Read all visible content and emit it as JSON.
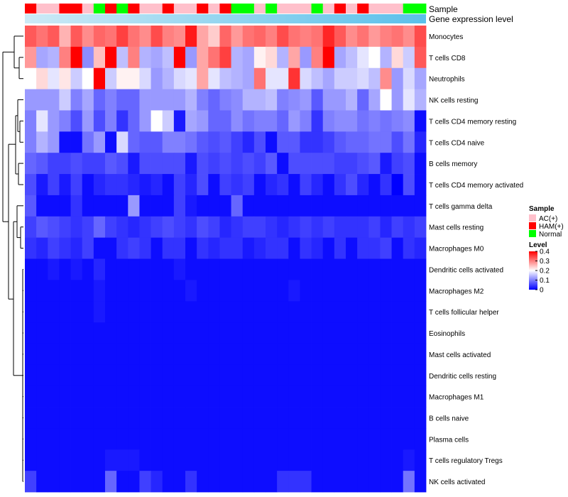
{
  "chart_data": {
    "type": "heatmap",
    "title": "",
    "annotation_labels": {
      "sample": "Sample",
      "gene": "Gene expression level"
    },
    "row_labels": [
      "Monocytes",
      "T cells CD8",
      "Neutrophils",
      "NK cells resting",
      "T cells CD4 memory resting",
      "T cells CD4 naive",
      "B cells memory",
      "T cells CD4 memory activated",
      "T cells gamma delta",
      "Mast cells resting",
      "Macrophages M0",
      "Dendritic cells activated",
      "Macrophages M2",
      "T cells follicular helper",
      "Eosinophils",
      "Mast cells activated",
      "Dendritic cells resting",
      "Macrophages M1",
      "B cells naive",
      "Plasma cells",
      "T cells regulatory  Tregs",
      "NK cells activated"
    ],
    "samples": [
      "HAM(+)",
      "AC(+)",
      "AC(+)",
      "HAM(+)",
      "HAM(+)",
      "AC(+)",
      "Normal",
      "HAM(+)",
      "Normal",
      "HAM(+)",
      "AC(+)",
      "AC(+)",
      "HAM(+)",
      "AC(+)",
      "AC(+)",
      "HAM(+)",
      "AC(+)",
      "HAM(+)",
      "Normal",
      "Normal",
      "AC(+)",
      "Normal",
      "AC(+)",
      "AC(+)",
      "AC(+)",
      "Normal",
      "AC(+)",
      "HAM(+)",
      "AC(+)",
      "HAM(+)",
      "AC(+)",
      "AC(+)",
      "AC(+)",
      "Normal",
      "Normal"
    ],
    "values": [
      [
        0.33,
        0.31,
        0.33,
        0.26,
        0.33,
        0.29,
        0.32,
        0.31,
        0.35,
        0.31,
        0.29,
        0.34,
        0.3,
        0.29,
        0.38,
        0.27,
        0.24,
        0.32,
        0.28,
        0.31,
        0.32,
        0.3,
        0.34,
        0.31,
        0.3,
        0.31,
        0.37,
        0.33,
        0.29,
        0.31,
        0.28,
        0.3,
        0.31,
        0.29,
        0.34
      ],
      [
        0.28,
        0.13,
        0.14,
        0.3,
        0.4,
        0.11,
        0.25,
        0.4,
        0.15,
        0.3,
        0.14,
        0.13,
        0.15,
        0.4,
        0.12,
        0.27,
        0.31,
        0.35,
        0.14,
        0.13,
        0.21,
        0.23,
        0.14,
        0.27,
        0.12,
        0.3,
        0.4,
        0.13,
        0.15,
        0.18,
        0.2,
        0.14,
        0.23,
        0.16,
        0.33
      ],
      [
        0.2,
        0.23,
        0.18,
        0.22,
        0.16,
        0.2,
        0.4,
        0.16,
        0.21,
        0.21,
        0.17,
        0.12,
        0.14,
        0.17,
        0.18,
        0.27,
        0.18,
        0.15,
        0.14,
        0.13,
        0.31,
        0.18,
        0.18,
        0.36,
        0.17,
        0.15,
        0.13,
        0.16,
        0.16,
        0.17,
        0.15,
        0.29,
        0.12,
        0.17,
        0.13
      ],
      [
        0.12,
        0.12,
        0.12,
        0.16,
        0.1,
        0.13,
        0.08,
        0.1,
        0.08,
        0.08,
        0.12,
        0.12,
        0.12,
        0.12,
        0.14,
        0.1,
        0.08,
        0.1,
        0.11,
        0.14,
        0.14,
        0.15,
        0.1,
        0.11,
        0.12,
        0.07,
        0.12,
        0.12,
        0.14,
        0.08,
        0.13,
        0.2,
        0.12,
        0.18,
        0.14
      ],
      [
        0.1,
        0.18,
        0.12,
        0.1,
        0.06,
        0.12,
        0.06,
        0.1,
        0.04,
        0.08,
        0.12,
        0.2,
        0.16,
        0.02,
        0.13,
        0.12,
        0.08,
        0.08,
        0.11,
        0.09,
        0.1,
        0.1,
        0.08,
        0.12,
        0.1,
        0.04,
        0.1,
        0.11,
        0.11,
        0.09,
        0.1,
        0.09,
        0.1,
        0.11,
        0.01
      ],
      [
        0.1,
        0.14,
        0.12,
        0.01,
        0.01,
        0.09,
        0.12,
        0.01,
        0.17,
        0.08,
        0.07,
        0.07,
        0.1,
        0.1,
        0.09,
        0.07,
        0.06,
        0.07,
        0.05,
        0.03,
        0.06,
        0.01,
        0.07,
        0.07,
        0.04,
        0.04,
        0.05,
        0.07,
        0.08,
        0.08,
        0.09,
        0.09,
        0.06,
        0.09,
        0.03
      ],
      [
        0.08,
        0.07,
        0.05,
        0.05,
        0.06,
        0.05,
        0.05,
        0.07,
        0.06,
        0.02,
        0.06,
        0.06,
        0.06,
        0.06,
        0.02,
        0.06,
        0.05,
        0.06,
        0.05,
        0.06,
        0.05,
        0.07,
        0.01,
        0.06,
        0.06,
        0.06,
        0.06,
        0.05,
        0.05,
        0.06,
        0.07,
        0.02,
        0.05,
        0.06,
        0.01
      ],
      [
        0.06,
        0.02,
        0.05,
        0.02,
        0.05,
        0.01,
        0.03,
        0.04,
        0.04,
        0.03,
        0.02,
        0.03,
        0.01,
        0.05,
        0.03,
        0.06,
        0.01,
        0.05,
        0.04,
        0.05,
        0.01,
        0.03,
        0.04,
        0.01,
        0.05,
        0.03,
        0.01,
        0.04,
        0.06,
        0.03,
        0.01,
        0.04,
        0.0,
        0.06,
        0.01
      ],
      [
        0.07,
        0.01,
        0.01,
        0.01,
        0.04,
        0.01,
        0.01,
        0.01,
        0.01,
        0.12,
        0.01,
        0.01,
        0.01,
        0.05,
        0.02,
        0.01,
        0.01,
        0.01,
        0.08,
        0.01,
        0.01,
        0.01,
        0.01,
        0.01,
        0.01,
        0.01,
        0.01,
        0.01,
        0.01,
        0.01,
        0.01,
        0.01,
        0.01,
        0.01,
        0.01
      ],
      [
        0.05,
        0.07,
        0.06,
        0.05,
        0.04,
        0.05,
        0.08,
        0.05,
        0.04,
        0.03,
        0.04,
        0.05,
        0.06,
        0.05,
        0.04,
        0.06,
        0.05,
        0.03,
        0.04,
        0.05,
        0.05,
        0.04,
        0.03,
        0.04,
        0.05,
        0.04,
        0.05,
        0.04,
        0.04,
        0.04,
        0.05,
        0.03,
        0.05,
        0.04,
        0.05
      ],
      [
        0.04,
        0.03,
        0.05,
        0.04,
        0.03,
        0.05,
        0.01,
        0.01,
        0.04,
        0.05,
        0.04,
        0.01,
        0.04,
        0.04,
        0.01,
        0.04,
        0.03,
        0.04,
        0.04,
        0.02,
        0.03,
        0.04,
        0.04,
        0.01,
        0.04,
        0.03,
        0.01,
        0.04,
        0.01,
        0.04,
        0.04,
        0.05,
        0.01,
        0.04,
        0.03
      ],
      [
        0.01,
        0.01,
        0.02,
        0.01,
        0.02,
        0.01,
        0.03,
        0.01,
        0.01,
        0.01,
        0.01,
        0.01,
        0.01,
        0.02,
        0.01,
        0.01,
        0.01,
        0.01,
        0.01,
        0.01,
        0.01,
        0.01,
        0.01,
        0.01,
        0.01,
        0.01,
        0.01,
        0.01,
        0.01,
        0.01,
        0.01,
        0.01,
        0.01,
        0.01,
        0.01
      ],
      [
        0.01,
        0.01,
        0.01,
        0.01,
        0.01,
        0.01,
        0.02,
        0.01,
        0.01,
        0.01,
        0.01,
        0.01,
        0.01,
        0.01,
        0.02,
        0.01,
        0.01,
        0.01,
        0.01,
        0.01,
        0.01,
        0.01,
        0.01,
        0.02,
        0.01,
        0.01,
        0.01,
        0.01,
        0.01,
        0.01,
        0.01,
        0.01,
        0.01,
        0.01,
        0.01
      ],
      [
        0.01,
        0.01,
        0.01,
        0.01,
        0.01,
        0.01,
        0.02,
        0.01,
        0.01,
        0.01,
        0.01,
        0.01,
        0.01,
        0.01,
        0.01,
        0.01,
        0.01,
        0.01,
        0.01,
        0.01,
        0.01,
        0.01,
        0.01,
        0.01,
        0.01,
        0.01,
        0.01,
        0.01,
        0.01,
        0.01,
        0.01,
        0.01,
        0.01,
        0.01,
        0.01
      ],
      [
        0.01,
        0.01,
        0.01,
        0.01,
        0.01,
        0.01,
        0.01,
        0.01,
        0.01,
        0.01,
        0.01,
        0.01,
        0.01,
        0.01,
        0.01,
        0.01,
        0.01,
        0.01,
        0.01,
        0.01,
        0.01,
        0.01,
        0.01,
        0.01,
        0.01,
        0.01,
        0.01,
        0.01,
        0.01,
        0.01,
        0.01,
        0.01,
        0.01,
        0.01,
        0.01
      ],
      [
        0.01,
        0.01,
        0.01,
        0.01,
        0.01,
        0.01,
        0.01,
        0.01,
        0.01,
        0.01,
        0.01,
        0.01,
        0.01,
        0.01,
        0.01,
        0.01,
        0.01,
        0.01,
        0.01,
        0.01,
        0.01,
        0.01,
        0.01,
        0.01,
        0.01,
        0.01,
        0.01,
        0.01,
        0.01,
        0.01,
        0.01,
        0.01,
        0.01,
        0.01,
        0.01
      ],
      [
        0.01,
        0.01,
        0.01,
        0.01,
        0.01,
        0.01,
        0.01,
        0.01,
        0.01,
        0.01,
        0.01,
        0.01,
        0.01,
        0.01,
        0.01,
        0.01,
        0.01,
        0.01,
        0.01,
        0.01,
        0.01,
        0.01,
        0.01,
        0.01,
        0.01,
        0.01,
        0.01,
        0.01,
        0.01,
        0.01,
        0.01,
        0.01,
        0.01,
        0.01,
        0.01
      ],
      [
        0.01,
        0.01,
        0.01,
        0.01,
        0.01,
        0.01,
        0.01,
        0.01,
        0.01,
        0.01,
        0.01,
        0.01,
        0.01,
        0.01,
        0.01,
        0.01,
        0.01,
        0.01,
        0.01,
        0.01,
        0.01,
        0.01,
        0.01,
        0.01,
        0.01,
        0.01,
        0.01,
        0.01,
        0.01,
        0.01,
        0.01,
        0.01,
        0.01,
        0.01,
        0.01
      ],
      [
        0.01,
        0.01,
        0.01,
        0.01,
        0.01,
        0.01,
        0.01,
        0.01,
        0.01,
        0.01,
        0.01,
        0.01,
        0.01,
        0.01,
        0.01,
        0.01,
        0.01,
        0.01,
        0.01,
        0.01,
        0.01,
        0.01,
        0.01,
        0.01,
        0.01,
        0.01,
        0.01,
        0.01,
        0.01,
        0.01,
        0.01,
        0.01,
        0.01,
        0.01,
        0.01
      ],
      [
        0.01,
        0.01,
        0.01,
        0.01,
        0.01,
        0.01,
        0.01,
        0.01,
        0.01,
        0.01,
        0.01,
        0.01,
        0.01,
        0.01,
        0.01,
        0.01,
        0.01,
        0.01,
        0.01,
        0.01,
        0.01,
        0.01,
        0.01,
        0.01,
        0.01,
        0.01,
        0.01,
        0.01,
        0.01,
        0.01,
        0.01,
        0.01,
        0.01,
        0.01,
        0.01
      ],
      [
        0.01,
        0.01,
        0.01,
        0.01,
        0.01,
        0.01,
        0.01,
        0.02,
        0.02,
        0.02,
        0.01,
        0.01,
        0.01,
        0.01,
        0.01,
        0.01,
        0.01,
        0.01,
        0.01,
        0.01,
        0.01,
        0.01,
        0.01,
        0.01,
        0.01,
        0.01,
        0.01,
        0.01,
        0.01,
        0.01,
        0.01,
        0.01,
        0.01,
        0.02,
        0.01
      ],
      [
        0.05,
        0.01,
        0.01,
        0.01,
        0.01,
        0.01,
        0.01,
        0.08,
        0.01,
        0.01,
        0.05,
        0.03,
        0.01,
        0.01,
        0.04,
        0.01,
        0.01,
        0.01,
        0.01,
        0.01,
        0.01,
        0.01,
        0.04,
        0.04,
        0.04,
        0.01,
        0.01,
        0.01,
        0.01,
        0.01,
        0.01,
        0.01,
        0.01,
        0.09,
        0.01
      ]
    ],
    "color_scale": {
      "min": 0,
      "max": 0.4,
      "low": "#0000ff",
      "mid": "#ffffff",
      "high": "#ff0000",
      "mid_value": 0.2
    },
    "gene_expression_colors": [
      "#cdeaf6",
      "#5bc0ea"
    ],
    "legend": {
      "sample_title": "Sample",
      "sample_items": [
        {
          "label": "AC(+)",
          "color": "#ffc0cb"
        },
        {
          "label": "HAM(+)",
          "color": "#ff0000"
        },
        {
          "label": "Normal",
          "color": "#00ff00"
        }
      ],
      "level_title": "Level",
      "level_ticks": [
        "0.4",
        "0.3",
        "0.2",
        "0.1",
        "0"
      ],
      "level_tick_values": [
        0.4,
        0.3,
        0.2,
        0.1,
        0
      ]
    }
  }
}
